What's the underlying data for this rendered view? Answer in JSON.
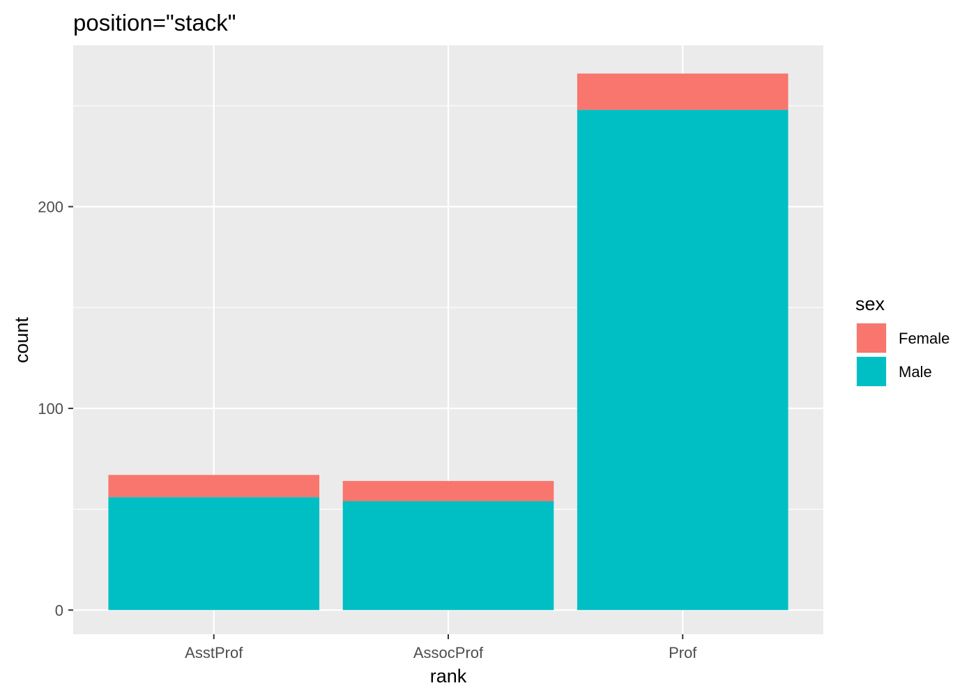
{
  "chart_data": {
    "type": "bar",
    "stacked": true,
    "title": "position=\"stack\"",
    "xlabel": "rank",
    "ylabel": "count",
    "categories": [
      "AsstProf",
      "AssocProf",
      "Prof"
    ],
    "series": [
      {
        "name": "Female",
        "values": [
          11,
          10,
          18
        ],
        "color": "#F8766D"
      },
      {
        "name": "Male",
        "values": [
          56,
          54,
          248
        ],
        "color": "#00BFC4"
      }
    ],
    "ylim": [
      -12,
      280
    ],
    "yticks": [
      0,
      100,
      200
    ],
    "ytick_labels": [
      "0",
      "100",
      "200"
    ],
    "y_minor_ticks": [
      50,
      150,
      250
    ],
    "grid": true,
    "panel_background": "#EBEBEB",
    "legend": {
      "title": "sex",
      "placement": "right",
      "entries": [
        "Female",
        "Male"
      ]
    }
  }
}
